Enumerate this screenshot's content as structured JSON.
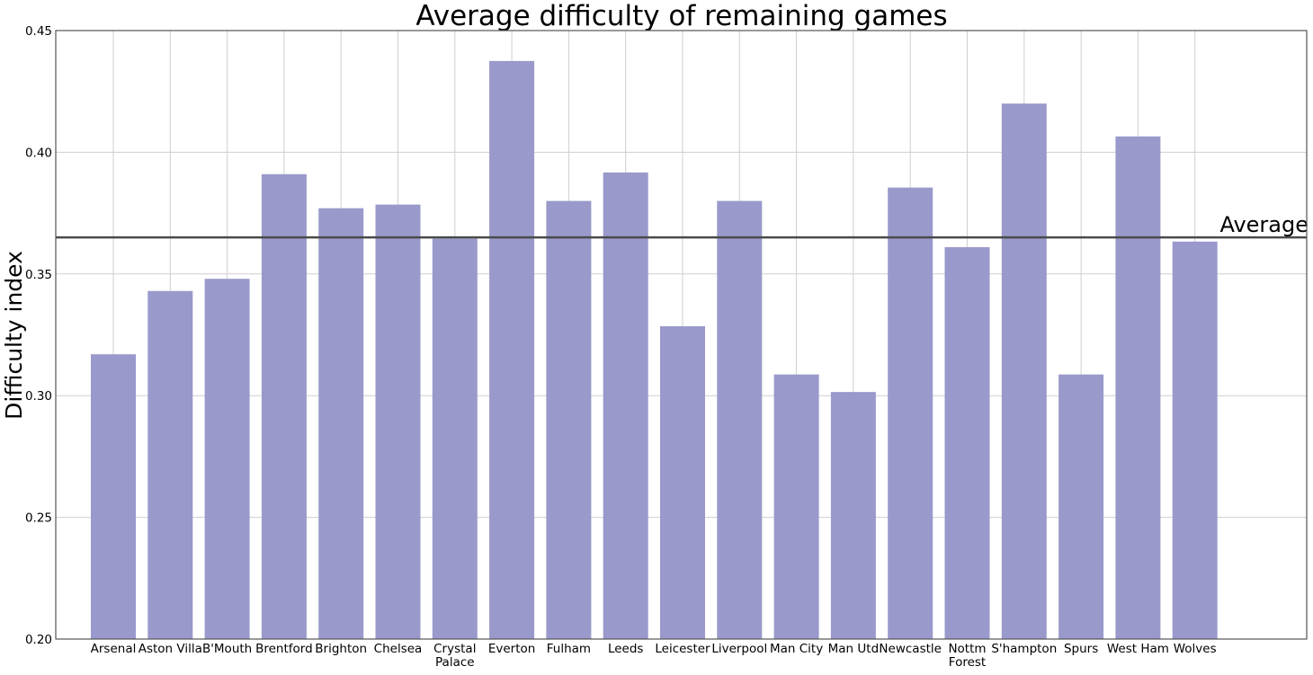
{
  "chart_data": {
    "type": "bar",
    "title": "Average difficulty of remaining games",
    "xlabel": "",
    "ylabel": "Difficulty index",
    "ylim": [
      0.2,
      0.45
    ],
    "yticks": [
      "0.20",
      "0.25",
      "0.30",
      "0.35",
      "0.40",
      "0.45"
    ],
    "grid": true,
    "categories": [
      [
        "Arsenal"
      ],
      [
        "Aston Villa"
      ],
      [
        "B'Mouth"
      ],
      [
        "Brentford"
      ],
      [
        "Brighton"
      ],
      [
        "Chelsea"
      ],
      [
        "Crystal",
        "Palace"
      ],
      [
        "Everton"
      ],
      [
        "Fulham"
      ],
      [
        "Leeds"
      ],
      [
        "Leicester"
      ],
      [
        "Liverpool"
      ],
      [
        "Man City"
      ],
      [
        "Man Utd"
      ],
      [
        "Newcastle"
      ],
      [
        "Nottm",
        "Forest"
      ],
      [
        "S'hampton"
      ],
      [
        "Spurs"
      ],
      [
        "West Ham"
      ],
      [
        "Wolves"
      ]
    ],
    "values": [
      0.317,
      0.343,
      0.348,
      0.391,
      0.377,
      0.3785,
      0.3645,
      0.4375,
      0.38,
      0.3917,
      0.3285,
      0.38,
      0.3087,
      0.3015,
      0.3855,
      0.361,
      0.42,
      0.3087,
      0.4065,
      0.3633
    ],
    "reference_line": {
      "label": "Average",
      "value": 0.365
    },
    "bar_color": "#9999cb",
    "reference_line_color": "#4a4a4a"
  }
}
